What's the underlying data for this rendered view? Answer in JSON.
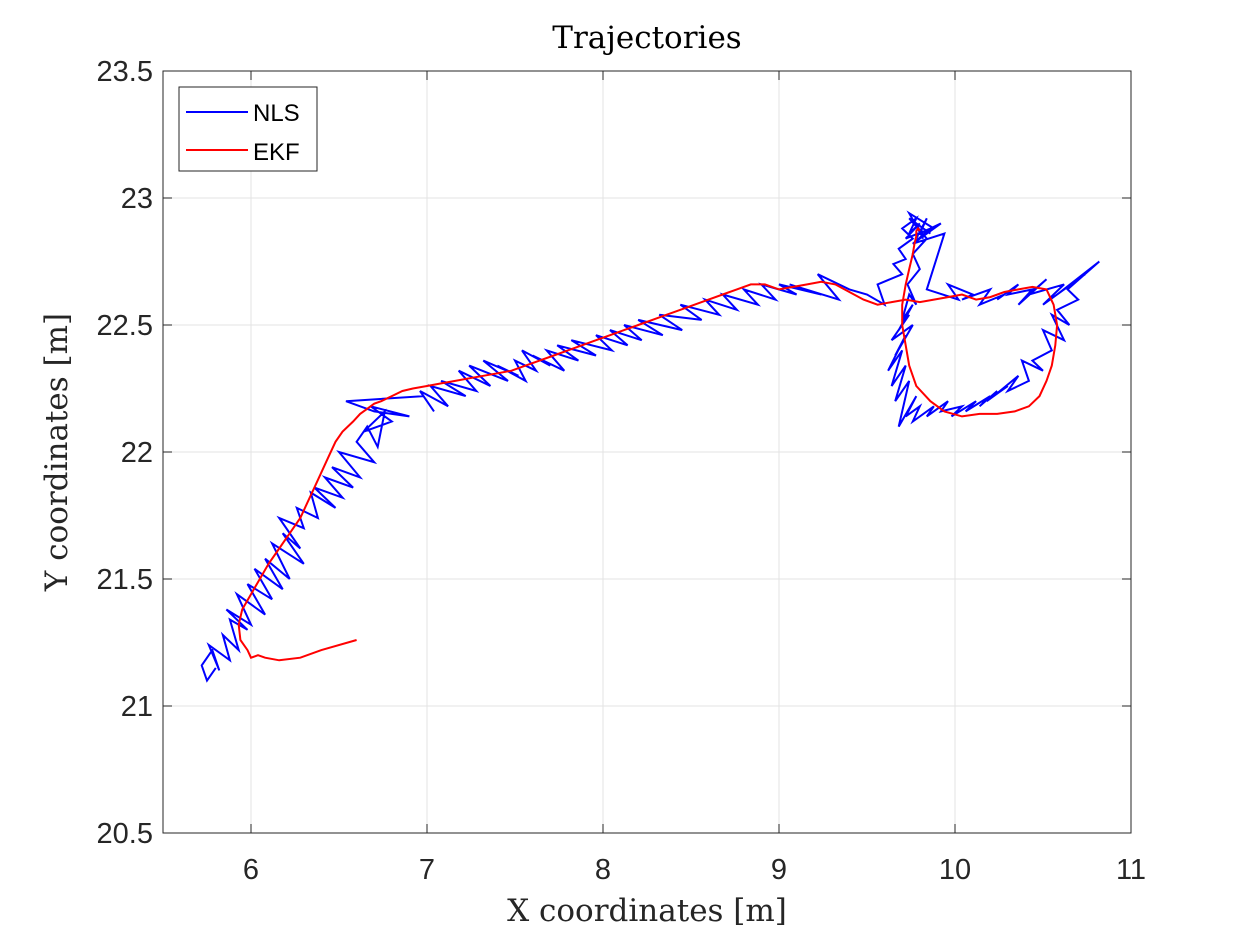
{
  "chart_data": {
    "type": "line",
    "title": "Trajectories",
    "xlabel": "X coordinates [m]",
    "ylabel": "Y coordinates [m]",
    "xlim": [
      5.5,
      11
    ],
    "ylim": [
      20.5,
      23.5
    ],
    "xticks": [
      6,
      7,
      8,
      9,
      10,
      11
    ],
    "yticks": [
      20.5,
      21,
      21.5,
      22,
      22.5,
      23,
      23.5
    ],
    "xtick_labels": [
      "6",
      "7",
      "8",
      "9",
      "10",
      "11"
    ],
    "ytick_labels": [
      "20.5",
      "21",
      "21.5",
      "22",
      "22.5",
      "23",
      "23.5"
    ],
    "grid": true,
    "legend_position": "top-left",
    "colors": {
      "NLS": "#0000ff",
      "EKF": "#ff0000",
      "grid": "#e3e3e3",
      "axes": "#262626"
    },
    "series": [
      {
        "name": "NLS",
        "color": "#0000ff",
        "x": [
          5.8,
          5.75,
          5.72,
          5.78,
          5.82,
          5.76,
          5.88,
          5.84,
          5.93,
          5.88,
          5.98,
          5.86,
          6.0,
          5.92,
          6.08,
          5.98,
          6.12,
          6.02,
          6.18,
          6.08,
          6.22,
          6.12,
          6.3,
          6.18,
          6.28,
          6.16,
          6.3,
          6.26,
          6.38,
          6.34,
          6.48,
          6.36,
          6.52,
          6.42,
          6.58,
          6.46,
          6.62,
          6.5,
          6.7,
          6.6,
          6.66,
          6.72,
          6.76,
          6.64,
          6.8,
          6.68,
          6.9,
          6.7,
          6.54,
          6.98,
          7.04,
          6.96,
          7.12,
          7.02,
          7.22,
          7.08,
          7.28,
          7.18,
          7.36,
          7.24,
          7.46,
          7.32,
          7.52,
          7.4,
          7.56,
          7.5,
          7.62,
          7.54,
          7.7,
          7.6,
          7.78,
          7.68,
          7.86,
          7.74,
          7.96,
          7.82,
          8.05,
          7.96,
          8.14,
          8.04,
          8.22,
          8.12,
          8.34,
          8.2,
          8.45,
          8.32,
          8.56,
          8.44,
          8.66,
          8.58,
          8.76,
          8.68,
          8.88,
          8.8,
          8.98,
          8.9,
          9.1,
          9.0,
          9.24,
          9.06,
          9.34,
          9.22,
          9.4,
          9.5,
          9.6,
          9.56,
          9.7,
          9.65,
          9.72,
          9.68,
          9.76,
          9.7,
          9.78,
          9.74,
          9.8,
          9.72,
          9.86,
          9.76,
          9.94,
          9.84,
          10.02,
          9.96,
          10.1,
          10.04,
          10.2,
          10.14,
          10.28,
          10.24,
          10.36,
          10.3,
          10.44,
          10.36,
          10.52,
          10.42,
          10.62,
          10.5,
          10.74,
          10.58,
          10.82,
          10.64,
          10.7,
          10.58,
          10.65,
          10.55,
          10.62,
          10.5,
          10.55,
          10.44,
          10.5,
          10.38,
          10.42,
          10.3,
          10.36,
          10.22,
          10.3,
          10.18,
          10.24,
          10.14,
          10.2,
          10.06,
          10.12,
          9.98,
          10.04,
          9.92,
          9.96,
          9.84,
          9.88,
          9.76,
          9.8,
          9.72,
          9.78,
          9.68,
          9.74,
          9.66,
          9.72,
          9.64,
          9.7,
          9.62,
          9.72,
          9.66,
          9.76,
          9.64,
          9.74,
          9.68,
          9.76,
          9.7,
          9.74,
          9.78,
          9.73,
          9.8,
          9.76,
          9.84,
          9.74,
          9.86,
          9.78,
          9.82,
          9.74,
          9.88,
          9.76,
          9.92,
          9.8,
          9.84,
          9.78
        ],
        "y": [
          21.15,
          21.1,
          21.16,
          21.22,
          21.14,
          21.24,
          21.18,
          21.28,
          21.22,
          21.34,
          21.3,
          21.38,
          21.32,
          21.44,
          21.36,
          21.48,
          21.42,
          21.54,
          21.46,
          21.58,
          21.5,
          21.64,
          21.56,
          21.68,
          21.62,
          21.74,
          21.7,
          21.78,
          21.74,
          21.84,
          21.78,
          21.86,
          21.82,
          21.9,
          21.86,
          21.94,
          21.9,
          22.0,
          21.96,
          22.04,
          22.1,
          22.02,
          22.16,
          22.08,
          22.12,
          22.18,
          22.14,
          22.16,
          22.2,
          22.22,
          22.16,
          22.24,
          22.18,
          22.26,
          22.22,
          22.28,
          22.24,
          22.32,
          22.26,
          22.34,
          22.28,
          22.36,
          22.3,
          22.34,
          22.28,
          22.36,
          22.32,
          22.4,
          22.34,
          22.38,
          22.32,
          22.4,
          22.36,
          22.42,
          22.38,
          22.44,
          22.4,
          22.46,
          22.42,
          22.48,
          22.44,
          22.5,
          22.46,
          22.52,
          22.48,
          22.54,
          22.52,
          22.58,
          22.54,
          22.6,
          22.56,
          22.62,
          22.58,
          22.64,
          22.6,
          22.66,
          22.62,
          22.66,
          22.62,
          22.66,
          22.6,
          22.7,
          22.64,
          22.62,
          22.58,
          22.66,
          22.7,
          22.74,
          22.76,
          22.8,
          22.84,
          22.88,
          22.92,
          22.86,
          22.9,
          22.84,
          22.88,
          22.82,
          22.86,
          22.64,
          22.6,
          22.66,
          22.62,
          22.6,
          22.64,
          22.58,
          22.62,
          22.6,
          22.66,
          22.62,
          22.64,
          22.58,
          22.68,
          22.62,
          22.66,
          22.58,
          22.7,
          22.62,
          22.75,
          22.64,
          22.6,
          22.56,
          22.5,
          22.54,
          22.44,
          22.48,
          22.4,
          22.36,
          22.32,
          22.36,
          22.28,
          22.24,
          22.3,
          22.22,
          22.26,
          22.2,
          22.24,
          22.18,
          22.22,
          22.16,
          22.2,
          22.14,
          22.18,
          22.16,
          22.2,
          22.14,
          22.18,
          22.12,
          22.18,
          22.14,
          22.22,
          22.1,
          22.28,
          22.2,
          22.34,
          22.26,
          22.4,
          22.32,
          22.46,
          22.38,
          22.5,
          22.44,
          22.54,
          22.48,
          22.58,
          22.52,
          22.62,
          22.58,
          22.66,
          22.72,
          22.78,
          22.84,
          22.92,
          22.86,
          22.9,
          22.84,
          22.94,
          22.88,
          22.82,
          22.9,
          22.86,
          22.92,
          22.84
        ]
      },
      {
        "name": "EKF",
        "color": "#ff0000",
        "x": [
          6.6,
          6.4,
          6.28,
          6.16,
          6.08,
          6.04,
          6.0,
          5.98,
          5.94,
          5.93,
          5.95,
          6.0,
          6.05,
          6.1,
          6.16,
          6.22,
          6.28,
          6.32,
          6.36,
          6.4,
          6.44,
          6.48,
          6.52,
          6.58,
          6.62,
          6.66,
          6.7,
          6.74,
          6.8,
          6.86,
          6.92,
          7.0,
          7.08,
          7.16,
          7.24,
          7.32,
          7.4,
          7.48,
          7.56,
          7.64,
          7.72,
          7.8,
          7.88,
          7.96,
          8.04,
          8.12,
          8.2,
          8.28,
          8.36,
          8.44,
          8.52,
          8.6,
          8.68,
          8.76,
          8.84,
          8.92,
          9.0,
          9.08,
          9.16,
          9.24,
          9.32,
          9.4,
          9.48,
          9.56,
          9.64,
          9.72,
          9.8,
          9.88,
          9.96,
          10.04,
          10.12,
          10.2,
          10.28,
          10.36,
          10.44,
          10.52,
          10.56,
          10.58,
          10.57,
          10.55,
          10.52,
          10.48,
          10.42,
          10.34,
          10.24,
          10.14,
          10.04,
          9.94,
          9.86,
          9.78,
          9.74,
          9.72,
          9.7,
          9.7,
          9.72,
          9.74,
          9.76,
          9.77,
          9.78,
          9.78,
          9.79,
          9.8
        ],
        "y": [
          21.26,
          21.22,
          21.19,
          21.18,
          21.19,
          21.2,
          21.19,
          21.22,
          21.26,
          21.32,
          21.38,
          21.44,
          21.5,
          21.56,
          21.62,
          21.68,
          21.74,
          21.8,
          21.86,
          21.92,
          21.98,
          22.04,
          22.08,
          22.12,
          22.15,
          22.17,
          22.19,
          22.2,
          22.22,
          22.24,
          22.25,
          22.26,
          22.27,
          22.28,
          22.29,
          22.3,
          22.31,
          22.32,
          22.34,
          22.36,
          22.38,
          22.4,
          22.42,
          22.44,
          22.46,
          22.48,
          22.5,
          22.52,
          22.54,
          22.56,
          22.58,
          22.6,
          22.62,
          22.64,
          22.66,
          22.66,
          22.64,
          22.65,
          22.66,
          22.67,
          22.66,
          22.63,
          22.6,
          22.58,
          22.59,
          22.6,
          22.59,
          22.6,
          22.61,
          22.62,
          22.6,
          22.61,
          22.63,
          22.64,
          22.65,
          22.64,
          22.58,
          22.5,
          22.42,
          22.34,
          22.28,
          22.22,
          22.18,
          22.16,
          22.15,
          22.15,
          22.14,
          22.16,
          22.2,
          22.26,
          22.34,
          22.42,
          22.5,
          22.58,
          22.66,
          22.72,
          22.78,
          22.82,
          22.85,
          22.87,
          22.88,
          22.87
        ]
      }
    ]
  }
}
